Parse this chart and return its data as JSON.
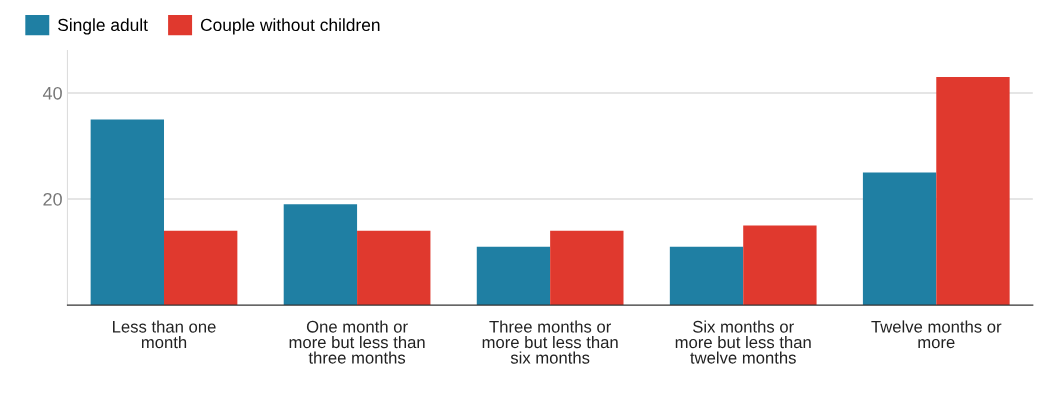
{
  "chart_data": {
    "type": "bar",
    "categories": [
      "Less than one month",
      "One month or more but less than three months",
      "Three months or more but less than six months",
      "Six months or more but less than twelve months",
      "Twelve months or more"
    ],
    "series": [
      {
        "name": "Single adult",
        "color": "#1f7fa3",
        "values": [
          35,
          19,
          11,
          11,
          25
        ]
      },
      {
        "name": "Couple without children",
        "color": "#e0392e",
        "values": [
          14,
          14,
          14,
          15,
          43
        ]
      }
    ],
    "ylim": [
      0,
      48
    ],
    "yticks": [
      20,
      40
    ],
    "grid": "y",
    "legend": "top left"
  }
}
